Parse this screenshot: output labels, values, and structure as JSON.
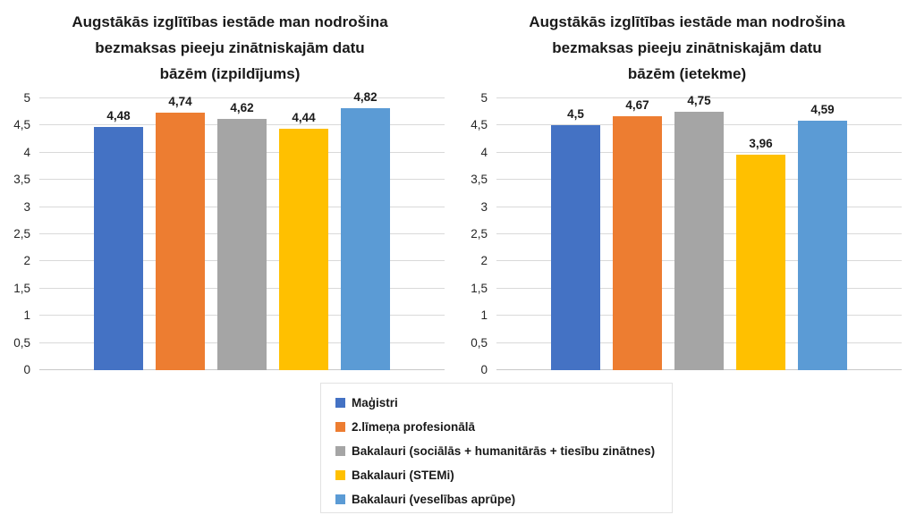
{
  "figure": {
    "background": "#ffffff",
    "tick_color": "#262626",
    "text_color": "#1a1a1a",
    "gridline_color": "#d9d9d9"
  },
  "series_colors": [
    "#4472C4",
    "#ED7D31",
    "#A5A5A5",
    "#FFC000",
    "#5B9BD5"
  ],
  "legend": {
    "position": "bottom-center",
    "items": [
      {
        "label": "Maģistri",
        "color": "#4472C4"
      },
      {
        "label": "2.līmeņa profesionālā",
        "color": "#ED7D31"
      },
      {
        "label": "Bakalauri (sociālās + humanitārās + tiesību zinātnes)",
        "color": "#A5A5A5"
      },
      {
        "label": "Bakalauri (STEMi)",
        "color": "#FFC000"
      },
      {
        "label": "Bakalauri (veselības aprūpe)",
        "color": "#5B9BD5"
      }
    ]
  },
  "chart_data": [
    {
      "type": "bar",
      "title": "Augstākās izglītības iestāde man nodrošina bezmaksas pieeju zinātniskajām datu bāzēm (izpildījums)",
      "title_lines": [
        "Augstākās izglītības iestāde man nodrošina",
        "bezmaksas pieeju zinātniskajām datu",
        "bāzēm (izpildījums)"
      ],
      "categories": [
        "Maģistri",
        "2.līmeņa profesionālā",
        "Bakalauri (sociālās + humanitārās + tiesību zinātnes)",
        "Bakalauri (STEMi)",
        "Bakalauri (veselības aprūpe)"
      ],
      "values": [
        4.48,
        4.74,
        4.62,
        4.44,
        4.82
      ],
      "value_labels": [
        "4,48",
        "4,74",
        "4,62",
        "4,44",
        "4,82"
      ],
      "xlabel": "",
      "ylabel": "",
      "ylim": [
        0,
        5
      ],
      "ytick_step": 0.5,
      "ytick_labels": [
        "0",
        "0,5",
        "1",
        "1,5",
        "2",
        "2,5",
        "3",
        "3,5",
        "4",
        "4,5",
        "5"
      ],
      "grid": true
    },
    {
      "type": "bar",
      "title": "Augstākās izglītības iestāde man nodrošina bezmaksas pieeju zinātniskajām datu bāzēm (ietekme)",
      "title_lines": [
        "Augstākās izglītības iestāde man nodrošina",
        "bezmaksas pieeju zinātniskajām datu",
        "bāzēm (ietekme)"
      ],
      "categories": [
        "Maģistri",
        "2.līmeņa profesionālā",
        "Bakalauri (sociālās + humanitārās + tiesību zinātnes)",
        "Bakalauri (STEMi)",
        "Bakalauri (veselības aprūpe)"
      ],
      "values": [
        4.5,
        4.67,
        4.75,
        3.96,
        4.59
      ],
      "value_labels": [
        "4,5",
        "4,67",
        "4,75",
        "3,96",
        "4,59"
      ],
      "xlabel": "",
      "ylabel": "",
      "ylim": [
        0,
        5
      ],
      "ytick_step": 0.5,
      "ytick_labels": [
        "0",
        "0,5",
        "1",
        "1,5",
        "2",
        "2,5",
        "3",
        "3,5",
        "4",
        "4,5",
        "5"
      ],
      "grid": true
    }
  ]
}
